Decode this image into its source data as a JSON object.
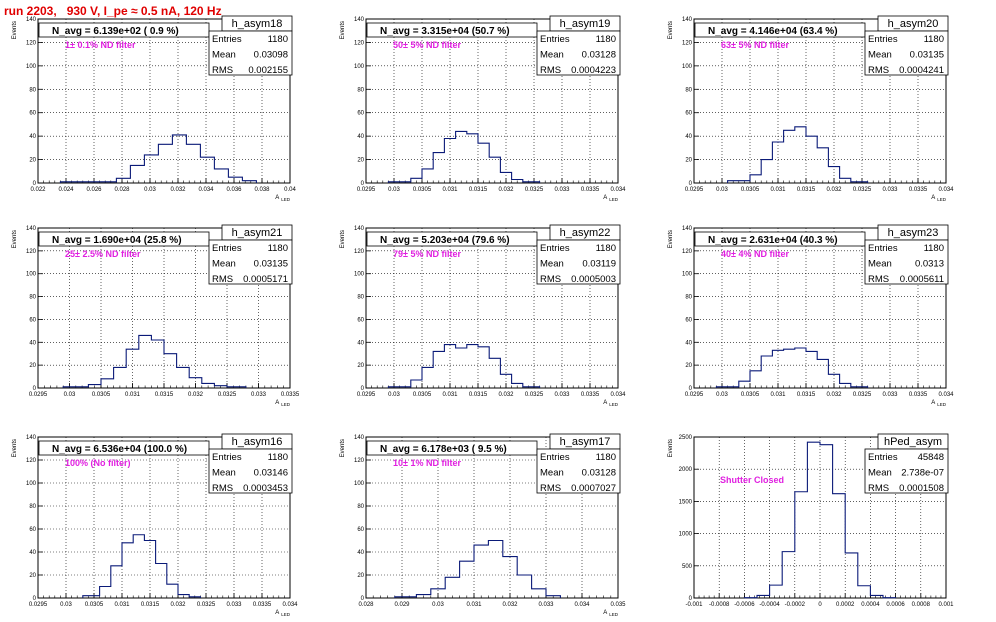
{
  "run_title": "run 2203,   930 V, I_pe ≈ 0.5 nA, 120 Hz",
  "stats_labels": [
    "Entries",
    "Mean",
    "RMS"
  ],
  "colors": {
    "hist_line": "#0a1a78",
    "annotation": "#e020e0",
    "grid": "#000000",
    "run_title": "#e00000"
  },
  "chart_data": [
    {
      "type": "histogram",
      "name": "h_asym18",
      "n_avg": "N_avg = 6.139e+02 ( 0.9 %)",
      "annotation": "1± 0.1% ND filter",
      "stats": [
        "1180",
        "0.03098",
        "0.002155"
      ],
      "ylabel": "Events",
      "xlabel": "A_{LED}",
      "xlim": [
        0.022,
        0.04
      ],
      "ylim": [
        0,
        140
      ],
      "xticks": [
        "0.022",
        "0.024",
        "0.026",
        "0.028",
        "0.03",
        "0.032",
        "0.034",
        "0.036",
        "0.038",
        "0.04"
      ],
      "yticks": [
        0,
        20,
        40,
        60,
        80,
        100,
        120,
        140
      ],
      "bin_edges": [
        0.0236,
        0.0276,
        0.0286,
        0.0296,
        0.0306,
        0.0316,
        0.0326,
        0.0336,
        0.0346,
        0.0356,
        0.0366,
        0.0376
      ],
      "values": [
        1,
        4,
        15,
        24,
        33,
        41,
        33,
        22,
        12,
        5,
        2
      ]
    },
    {
      "type": "histogram",
      "name": "h_asym19",
      "n_avg": "N_avg = 3.315e+04 (50.7 %)",
      "annotation": "50± 5% ND filter",
      "stats": [
        "1180",
        "0.03128",
        "0.0004223"
      ],
      "ylabel": "Events",
      "xlabel": "A_{LED}",
      "xlim": [
        0.0295,
        0.034
      ],
      "ylim": [
        0,
        140
      ],
      "xticks": [
        "0.0295",
        "0.03",
        "0.0305",
        "0.031",
        "0.0315",
        "0.032",
        "0.0325",
        "0.033",
        "0.0335",
        "0.034"
      ],
      "yticks": [
        0,
        20,
        40,
        60,
        80,
        100,
        120,
        140
      ],
      "bin_edges": [
        0.0299,
        0.0303,
        0.0305,
        0.0307,
        0.0309,
        0.0311,
        0.0313,
        0.0315,
        0.0317,
        0.0319,
        0.0321,
        0.0323,
        0.0326
      ],
      "values": [
        1,
        4,
        12,
        26,
        38,
        44,
        42,
        34,
        22,
        9,
        3,
        1
      ]
    },
    {
      "type": "histogram",
      "name": "h_asym20",
      "n_avg": "N_avg = 4.146e+04 (63.4 %)",
      "annotation": "63± 5% ND filter",
      "stats": [
        "1180",
        "0.03135",
        "0.0004241"
      ],
      "ylabel": "Events",
      "xlabel": "A_{LED}",
      "xlim": [
        0.0295,
        0.034
      ],
      "ylim": [
        0,
        140
      ],
      "xticks": [
        "0.0295",
        "0.03",
        "0.0305",
        "0.031",
        "0.0315",
        "0.032",
        "0.0325",
        "0.033",
        "0.0335",
        "0.034"
      ],
      "yticks": [
        0,
        20,
        40,
        60,
        80,
        100,
        120,
        140
      ],
      "bin_edges": [
        0.0301,
        0.0305,
        0.0307,
        0.0309,
        0.0311,
        0.0313,
        0.0315,
        0.0317,
        0.0319,
        0.0321,
        0.0323,
        0.0326
      ],
      "values": [
        2,
        7,
        20,
        35,
        45,
        48,
        40,
        30,
        14,
        4,
        1
      ]
    },
    {
      "type": "histogram",
      "name": "h_asym21",
      "n_avg": "N_avg = 1.690e+04 (25.8 %)",
      "annotation": "25± 2.5% ND filter",
      "stats": [
        "1180",
        "0.03135",
        "0.0005171"
      ],
      "ylabel": "Events",
      "xlabel": "A_{LED}",
      "xlim": [
        0.0295,
        0.0335
      ],
      "ylim": [
        0,
        140
      ],
      "xticks": [
        "0.0295",
        "0.03",
        "0.0305",
        "0.031",
        "0.0315",
        "0.032",
        "0.0325",
        "0.033",
        "0.0335"
      ],
      "yticks": [
        0,
        20,
        40,
        60,
        80,
        100,
        120,
        140
      ],
      "bin_edges": [
        0.0299,
        0.0303,
        0.0305,
        0.0307,
        0.0309,
        0.0311,
        0.0313,
        0.0315,
        0.0317,
        0.0319,
        0.0321,
        0.0323,
        0.0325,
        0.0328
      ],
      "values": [
        1,
        3,
        8,
        18,
        34,
        46,
        42,
        30,
        18,
        9,
        4,
        2,
        1
      ]
    },
    {
      "type": "histogram",
      "name": "h_asym22",
      "n_avg": "N_avg = 5.203e+04 (79.6 %)",
      "annotation": "79± 5% ND filter",
      "stats": [
        "1180",
        "0.03119",
        "0.0005003"
      ],
      "ylabel": "Events",
      "xlabel": "A_{LED}",
      "xlim": [
        0.0295,
        0.034
      ],
      "ylim": [
        0,
        140
      ],
      "xticks": [
        "0.0295",
        "0.03",
        "0.0305",
        "0.031",
        "0.0315",
        "0.032",
        "0.0325",
        "0.033",
        "0.0335",
        "0.034"
      ],
      "yticks": [
        0,
        20,
        40,
        60,
        80,
        100,
        120,
        140
      ],
      "bin_edges": [
        0.0299,
        0.0303,
        0.0305,
        0.0307,
        0.0309,
        0.0311,
        0.0313,
        0.0315,
        0.0317,
        0.0319,
        0.0321,
        0.0323,
        0.0326
      ],
      "values": [
        1,
        7,
        18,
        32,
        38,
        35,
        38,
        36,
        26,
        12,
        4,
        1
      ]
    },
    {
      "type": "histogram",
      "name": "h_asym23",
      "n_avg": "N_avg = 2.631e+04 (40.3 %)",
      "annotation": "40± 4% ND filter",
      "stats": [
        "1180",
        "0.0313",
        "0.0005611"
      ],
      "ylabel": "Events",
      "xlabel": "A_{LED}",
      "xlim": [
        0.0295,
        0.034
      ],
      "ylim": [
        0,
        140
      ],
      "xticks": [
        "0.0295",
        "0.03",
        "0.0305",
        "0.031",
        "0.0315",
        "0.032",
        "0.0325",
        "0.033",
        "0.0335",
        "0.034"
      ],
      "yticks": [
        0,
        20,
        40,
        60,
        80,
        100,
        120,
        140
      ],
      "bin_edges": [
        0.0299,
        0.0303,
        0.0305,
        0.0307,
        0.0309,
        0.0311,
        0.0313,
        0.0315,
        0.0317,
        0.0319,
        0.0321,
        0.0323,
        0.0326
      ],
      "values": [
        1,
        6,
        15,
        28,
        33,
        34,
        35,
        32,
        25,
        12,
        4,
        1
      ]
    },
    {
      "type": "histogram",
      "name": "h_asym16",
      "n_avg": "N_avg = 6.536e+04 (100.0 %)",
      "annotation": "100% (No filter)",
      "stats": [
        "1180",
        "0.03146",
        "0.0003453"
      ],
      "ylabel": "Events",
      "xlabel": "A_{LED}",
      "xlim": [
        0.0295,
        0.034
      ],
      "ylim": [
        0,
        140
      ],
      "xticks": [
        "0.0295",
        "0.03",
        "0.0305",
        "0.031",
        "0.0315",
        "0.032",
        "0.0325",
        "0.033",
        "0.0335",
        "0.034"
      ],
      "yticks": [
        0,
        20,
        40,
        60,
        80,
        100,
        120,
        140
      ],
      "bin_edges": [
        0.0303,
        0.0306,
        0.0308,
        0.031,
        0.0312,
        0.0314,
        0.0316,
        0.0318,
        0.032,
        0.0322,
        0.0324
      ],
      "values": [
        2,
        10,
        28,
        48,
        55,
        50,
        30,
        12,
        3,
        1
      ]
    },
    {
      "type": "histogram",
      "name": "h_asym17",
      "n_avg": "N_avg = 6.178e+03 ( 9.5 %)",
      "annotation": "10± 1% ND filter",
      "stats": [
        "1180",
        "0.03128",
        "0.0007027"
      ],
      "ylabel": "Events",
      "xlabel": "A_{LED}",
      "xlim": [
        0.028,
        0.035
      ],
      "ylim": [
        0,
        140
      ],
      "xticks": [
        "0.028",
        "0.029",
        "0.03",
        "0.031",
        "0.032",
        "0.033",
        "0.034",
        "0.035"
      ],
      "yticks": [
        0,
        20,
        40,
        60,
        80,
        100,
        120,
        140
      ],
      "bin_edges": [
        0.0288,
        0.0294,
        0.0298,
        0.0302,
        0.0306,
        0.031,
        0.0314,
        0.0318,
        0.0322,
        0.0326,
        0.033,
        0.0334
      ],
      "values": [
        1,
        3,
        8,
        18,
        32,
        46,
        50,
        36,
        20,
        8,
        2
      ]
    },
    {
      "type": "histogram",
      "name": "hPed_asym",
      "n_avg": "",
      "annotation": "Shutter Closed",
      "stats": [
        "45848",
        "2.738e-07",
        "0.0001508"
      ],
      "ylabel": "Events",
      "xlabel": "",
      "xlim": [
        -0.001,
        0.001
      ],
      "ylim": [
        0,
        2500
      ],
      "xticks": [
        "-0.001",
        "-0.0008",
        "-0.0006",
        "-0.0004",
        "-0.0002",
        "0",
        "0.0002",
        "0.0004",
        "0.0006",
        "0.0008",
        "0.001"
      ],
      "yticks": [
        0,
        500,
        1000,
        1500,
        2000,
        2500
      ],
      "bin_edges": [
        -0.0006,
        -0.0005,
        -0.0004,
        -0.0003,
        -0.0002,
        -0.0001,
        0,
        0.0001,
        0.0002,
        0.0003,
        0.0004,
        0.0005,
        0.0006
      ],
      "values": [
        5,
        40,
        200,
        720,
        1650,
        2420,
        2380,
        1620,
        700,
        190,
        40,
        5
      ]
    }
  ]
}
